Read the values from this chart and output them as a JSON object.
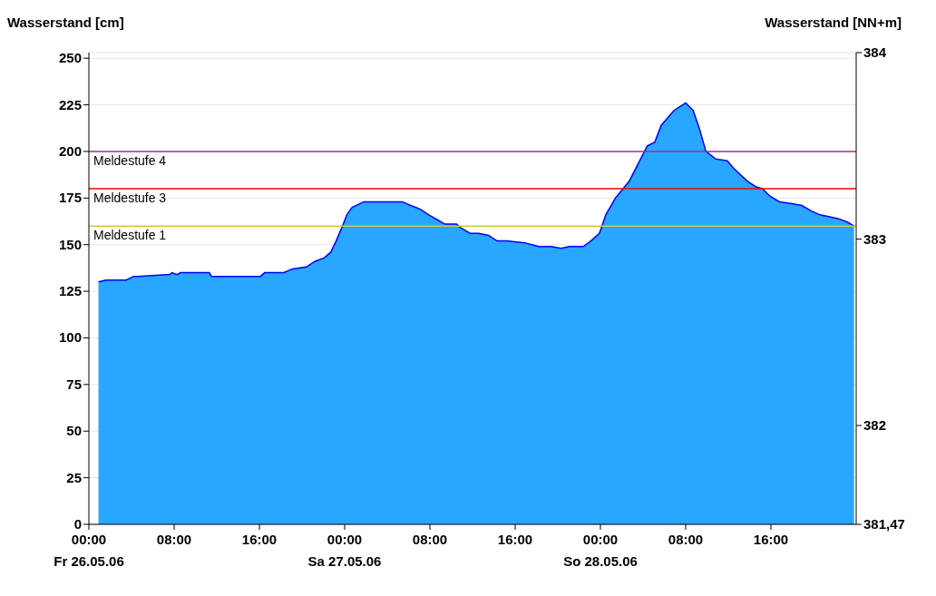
{
  "chart_data": {
    "type": "area",
    "ylabel": "Wasserstand [cm]",
    "y2label": "Wasserstand [NN+m]",
    "x": [
      "--05-26T00:54",
      "--05-26T01:36",
      "--05-26T03:30",
      "--05-26T04:12",
      "--05-26T04:36",
      "--05-26T07:36",
      "--05-26T07:48",
      "--05-26T08:18",
      "--05-26T08:36",
      "--05-26T11:18",
      "--05-26T11:30",
      "--05-26T16:06",
      "--05-26T16:30",
      "--05-26T18:18",
      "--05-26T19:06",
      "--05-26T20:24",
      "--05-26T21:12",
      "--05-26T22:06",
      "--05-26T22:42",
      "--05-26T23:12",
      "--05-26T23:48",
      "--05-27T00:12",
      "--05-27T00:42",
      "--05-27T01:48",
      "--05-27T05:24",
      "--05-27T06:12",
      "--05-27T07:06",
      "--05-27T07:54",
      "--05-27T08:48",
      "--05-27T09:24",
      "--05-27T10:30",
      "--05-27T10:54",
      "--05-27T11:48",
      "--05-27T12:36",
      "--05-27T13:30",
      "--05-27T14:18",
      "--05-27T15:12",
      "--05-27T16:54",
      "--05-27T18:12",
      "--05-27T19:24",
      "--05-27T20:18",
      "--05-27T21:06",
      "--05-27T22:24",
      "--05-27T23:06",
      "--05-27T23:54",
      "--05-28T00:30",
      "--05-28T01:24",
      "--05-28T02:42",
      "--05-28T03:30",
      "--05-28T04:24",
      "--05-28T05:06",
      "--05-28T05:42",
      "--05-28T06:54",
      "--05-28T08:00",
      "--05-28T08:42",
      "--05-28T09:18",
      "--05-28T09:54",
      "--05-28T10:48",
      "--05-28T11:54",
      "--05-28T12:30",
      "--05-28T13:48",
      "--05-28T14:36",
      "--05-28T15:12",
      "--05-28T15:54",
      "--05-28T16:48",
      "--05-28T18:00",
      "--05-28T18:54",
      "--05-28T19:48",
      "--05-28T20:36",
      "--05-28T22:18",
      "--05-28T23:12",
      "--05-28T23:48"
    ],
    "series": [
      {
        "color": "#29a6ff",
        "values": [
          130,
          131,
          131,
          133,
          133,
          134,
          135,
          134,
          135,
          135,
          133,
          133,
          135,
          135,
          137,
          138,
          141,
          143,
          146,
          152,
          160,
          166,
          170,
          173,
          173,
          171,
          169,
          166,
          163,
          161,
          161,
          159,
          156,
          156,
          155,
          152,
          152,
          151,
          149,
          149,
          148,
          149,
          149,
          152,
          156,
          166,
          175,
          184,
          193,
          203,
          205,
          214,
          222,
          226,
          222,
          212,
          200,
          196,
          195,
          191,
          184,
          181,
          180,
          176,
          173,
          172,
          171,
          168,
          166,
          164,
          162,
          160
        ]
      }
    ],
    "xlim": [
      "--05-26T00:00",
      "--05-29T00:00"
    ],
    "xticks": [
      {
        "value": "--05-26T00:00",
        "label": "00:00\nFr 26.05.06"
      },
      {
        "value": "--05-26T08:00",
        "label": "08:00"
      },
      {
        "value": "--05-26T16:00",
        "label": "16:00"
      },
      {
        "value": "--05-27T00:00",
        "label": "00:00\nSa 27.05.06"
      },
      {
        "value": "--05-27T08:00",
        "label": "08:00"
      },
      {
        "value": "--05-27T16:00",
        "label": "16:00"
      },
      {
        "value": "--05-28T00:00",
        "label": "00:00\nSo 28.05.06"
      },
      {
        "value": "--05-28T08:00",
        "label": "08:00"
      },
      {
        "value": "--05-28T16:00",
        "label": "16:00"
      }
    ],
    "ylim": [
      0,
      253
    ],
    "yticks": [
      0,
      25,
      50,
      75,
      100,
      125,
      150,
      175,
      200,
      225,
      250
    ],
    "y2lim": [
      381.47,
      384
    ],
    "y2ticks": [
      {
        "value": 381.47,
        "label": "381,47"
      },
      382,
      383,
      384
    ],
    "ref_lines": [
      {
        "axis": "y",
        "value": 200,
        "label": "Meldestufe 4",
        "color": "#993399"
      },
      {
        "axis": "y",
        "value": 180,
        "label": "Meldestufe 3",
        "color": "#ff0000"
      },
      {
        "axis": "y",
        "value": 160,
        "label": "Meldestufe 1",
        "color": "#cccc33"
      }
    ],
    "grid": "y",
    "legend": false
  }
}
